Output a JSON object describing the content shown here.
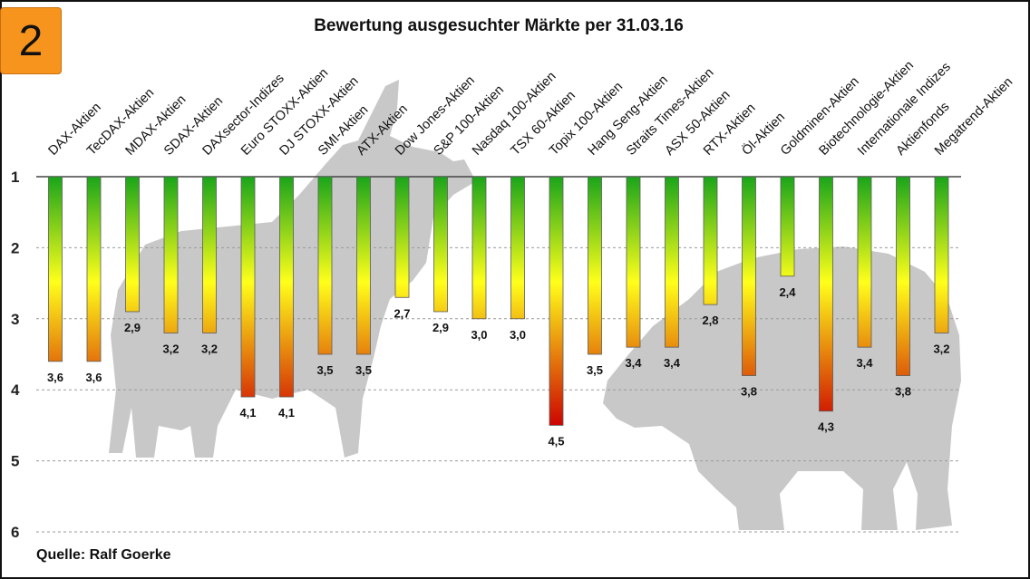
{
  "badge": {
    "number": "2",
    "color": "#f7941d"
  },
  "source": "Quelle: Ralf Goerke",
  "chart_data": {
    "type": "bar",
    "orientation": "vertical, hanging from top",
    "title": "Bewertung ausgesuchter Märkte per  31.03.16",
    "categories": [
      "DAX-Aktien",
      "TecDAX-Aktien",
      "MDAX-Aktien",
      "SDAX-Aktien",
      "DAXsector-Indizes",
      "Euro STOXX-Aktien",
      "DJ STOXX-Aktien",
      "SMI-Aktien",
      "ATX-Aktien",
      "Dow Jones-Aktien",
      "S&P 100-Aktien",
      "Nasdaq 100-Aktien",
      "TSX 60-Aktien",
      "Topix 100-Aktien",
      "Hang Seng-Aktien",
      "Straits Times-Aktien",
      "ASX 50-Aktien",
      "RTX-Aktien",
      "Öl-Aktien",
      "Goldminen-Aktien",
      "Biotechnologie-Aktien",
      "Internationale Indizes",
      "Aktienfonds",
      "Megatrend-Aktien"
    ],
    "values": [
      3.6,
      3.6,
      2.9,
      3.2,
      3.2,
      4.1,
      4.1,
      3.5,
      3.5,
      2.7,
      2.9,
      3.0,
      3.0,
      4.5,
      3.5,
      3.4,
      3.4,
      2.8,
      3.8,
      2.4,
      4.3,
      3.4,
      3.8,
      3.2
    ],
    "value_labels": [
      "3,6",
      "3,6",
      "2,9",
      "3,2",
      "3,2",
      "4,1",
      "4,1",
      "3,5",
      "3,5",
      "2,7",
      "2,9",
      "3,0",
      "3,0",
      "4,5",
      "3,5",
      "3,4",
      "3,4",
      "2,8",
      "3,8",
      "2,4",
      "4,3",
      "3,4",
      "3,8",
      "3,2"
    ],
    "yticks": [
      "1",
      "2",
      "3",
      "4",
      "5",
      "6"
    ],
    "ylim": [
      1,
      6
    ],
    "y_inverted": true,
    "grid": true,
    "gradient_colors": {
      "top": "#1aa51a",
      "middle": "#ffff1a",
      "bottom": "#cc0000"
    },
    "background_silhouettes": [
      "bull",
      "bear"
    ],
    "silhouette_color": "#c8c8c8"
  }
}
